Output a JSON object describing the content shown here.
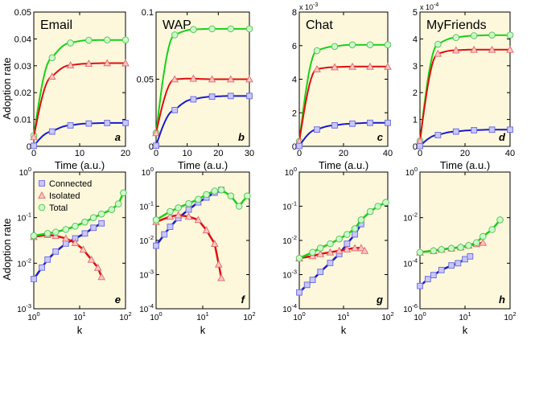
{
  "figure": {
    "row1_ylabel": "Adoption rate",
    "row2_ylabel": "Adoption rate",
    "row1_xlabel": "Time (a.u.)",
    "row2_xlabel": "k",
    "legend": [
      "Connected",
      "Isolated",
      "Total"
    ]
  },
  "colors": {
    "background": "#fdf8dc",
    "connected": "#1a1acc",
    "connected_marker_fill": "#c8c8ff",
    "connected_marker_edge": "#7070e0",
    "isolated": "#e01010",
    "isolated_marker_fill": "#ffc8c8",
    "isolated_marker_edge": "#e07070",
    "total": "#18d018",
    "total_marker_fill": "#c8ffc8",
    "total_marker_edge": "#60c060"
  },
  "chart_data": [
    {
      "panel": "a",
      "title": "Email",
      "type": "line",
      "x_range": [
        0,
        20
      ],
      "y_range": [
        0,
        0.05
      ],
      "xticks": [
        "0",
        "10",
        "20"
      ],
      "yticks": [
        "0",
        "0.01",
        "0.02",
        "0.03",
        "0.04",
        "0.05"
      ],
      "exponent": "",
      "series": [
        {
          "name": "Total",
          "x": [
            0,
            4,
            8,
            12,
            16,
            20
          ],
          "y": [
            0.004,
            0.033,
            0.0385,
            0.0395,
            0.0396,
            0.0396
          ]
        },
        {
          "name": "Isolated",
          "x": [
            0,
            4,
            8,
            12,
            16,
            20
          ],
          "y": [
            0.0035,
            0.026,
            0.0302,
            0.0308,
            0.031,
            0.031
          ]
        },
        {
          "name": "Connected",
          "x": [
            0,
            4,
            8,
            12,
            16,
            20
          ],
          "y": [
            0.0002,
            0.0055,
            0.0078,
            0.0085,
            0.0087,
            0.0087
          ]
        }
      ]
    },
    {
      "panel": "b",
      "title": "WAP",
      "type": "line",
      "x_range": [
        0,
        30
      ],
      "y_range": [
        0,
        0.1
      ],
      "xticks": [
        "0",
        "10",
        "20",
        "30"
      ],
      "yticks": [
        "0",
        "0.05",
        "0.1"
      ],
      "exponent": "",
      "series": [
        {
          "name": "Total",
          "x": [
            0,
            6,
            12,
            18,
            24,
            30
          ],
          "y": [
            0.01,
            0.083,
            0.087,
            0.0875,
            0.0875,
            0.0875
          ]
        },
        {
          "name": "Isolated",
          "x": [
            0,
            6,
            12,
            18,
            24,
            30
          ],
          "y": [
            0.01,
            0.05,
            0.0505,
            0.05,
            0.05,
            0.05
          ]
        },
        {
          "name": "Connected",
          "x": [
            0,
            6,
            12,
            18,
            24,
            30
          ],
          "y": [
            0.0005,
            0.027,
            0.035,
            0.037,
            0.0375,
            0.0375
          ]
        }
      ]
    },
    {
      "panel": "c",
      "title": "Chat",
      "type": "line",
      "x_range": [
        0,
        40
      ],
      "y_range": [
        0,
        8
      ],
      "xticks": [
        "0",
        "20",
        "40"
      ],
      "yticks": [
        "0",
        "2",
        "4",
        "6",
        "8"
      ],
      "exponent": "x 10^-3",
      "series": [
        {
          "name": "Total",
          "x": [
            0,
            8,
            16,
            24,
            32,
            40
          ],
          "y": [
            0.3,
            5.7,
            5.95,
            6.05,
            6.05,
            6.05
          ]
        },
        {
          "name": "Isolated",
          "x": [
            0,
            8,
            16,
            24,
            32,
            40
          ],
          "y": [
            0.3,
            4.6,
            4.72,
            4.75,
            4.75,
            4.75
          ]
        },
        {
          "name": "Connected",
          "x": [
            0,
            8,
            16,
            24,
            32,
            40
          ],
          "y": [
            0.02,
            1.0,
            1.25,
            1.35,
            1.4,
            1.4
          ]
        }
      ]
    },
    {
      "panel": "d",
      "title": "MyFriends",
      "type": "line",
      "x_range": [
        0,
        40
      ],
      "y_range": [
        0,
        5
      ],
      "xticks": [
        "0",
        "20",
        "40"
      ],
      "yticks": [
        "0",
        "1",
        "2",
        "3",
        "4",
        "5"
      ],
      "exponent": "x 10^-4",
      "series": [
        {
          "name": "Total",
          "x": [
            0,
            8,
            16,
            24,
            32,
            40
          ],
          "y": [
            0.2,
            3.8,
            4.05,
            4.12,
            4.14,
            4.14
          ]
        },
        {
          "name": "Isolated",
          "x": [
            0,
            8,
            16,
            24,
            32,
            40
          ],
          "y": [
            0.2,
            3.45,
            3.58,
            3.6,
            3.6,
            3.6
          ]
        },
        {
          "name": "Connected",
          "x": [
            0,
            8,
            16,
            24,
            32,
            40
          ],
          "y": [
            0.01,
            0.42,
            0.55,
            0.6,
            0.62,
            0.62
          ]
        }
      ]
    },
    {
      "panel": "e",
      "title": "",
      "type": "scatter",
      "log": true,
      "x_range": [
        1,
        100
      ],
      "y_range": [
        0.001,
        1
      ],
      "xticks": [
        "10^0",
        "10^1",
        "10^2"
      ],
      "yticks": [
        "10^-3",
        "10^-2",
        "10^-1",
        "10^0"
      ],
      "series": [
        {
          "name": "Connected",
          "x": [
            1,
            1.5,
            2,
            3,
            5,
            8,
            13,
            20,
            30
          ],
          "y": [
            0.0045,
            0.008,
            0.012,
            0.018,
            0.027,
            0.035,
            0.045,
            0.06,
            0.075
          ]
        },
        {
          "name": "Isolated",
          "x": [
            1,
            2,
            3,
            5,
            8,
            12,
            18,
            25,
            30
          ],
          "y": [
            0.038,
            0.042,
            0.04,
            0.035,
            0.028,
            0.02,
            0.012,
            0.008,
            0.005
          ]
        },
        {
          "name": "Total",
          "x": [
            1,
            2,
            3,
            5,
            8,
            13,
            20,
            30,
            50,
            70,
            90
          ],
          "y": [
            0.04,
            0.045,
            0.048,
            0.055,
            0.065,
            0.08,
            0.1,
            0.12,
            0.15,
            0.2,
            0.35
          ]
        }
      ]
    },
    {
      "panel": "f",
      "title": "",
      "type": "scatter",
      "log": true,
      "x_range": [
        1,
        100
      ],
      "y_range": [
        0.0001,
        1
      ],
      "xticks": [
        "10^0",
        "10^1",
        "10^2"
      ],
      "yticks": [
        "10^-4",
        "10^-3",
        "10^-2",
        "10^-1",
        "10^0"
      ],
      "series": [
        {
          "name": "Connected",
          "x": [
            1,
            1.5,
            2,
            3,
            5,
            8,
            12,
            18,
            25
          ],
          "y": [
            0.007,
            0.015,
            0.025,
            0.045,
            0.08,
            0.13,
            0.18,
            0.25,
            0.3
          ]
        },
        {
          "name": "Isolated",
          "x": [
            1,
            2,
            3,
            5,
            8,
            12,
            18,
            22,
            25
          ],
          "y": [
            0.035,
            0.05,
            0.055,
            0.05,
            0.04,
            0.02,
            0.008,
            0.002,
            0.0008
          ]
        },
        {
          "name": "Total",
          "x": [
            1,
            2,
            3,
            5,
            8,
            12,
            18,
            25,
            40,
            60,
            90
          ],
          "y": [
            0.04,
            0.07,
            0.09,
            0.12,
            0.16,
            0.22,
            0.28,
            0.3,
            0.2,
            0.1,
            0.2
          ]
        }
      ]
    },
    {
      "panel": "g",
      "title": "",
      "type": "scatter",
      "log": true,
      "x_range": [
        1,
        100
      ],
      "y_range": [
        0.0001,
        1
      ],
      "xticks": [
        "10^0",
        "10^1",
        "10^2"
      ],
      "yticks": [
        "10^-4",
        "10^-3",
        "10^-2",
        "10^-1",
        "10^0"
      ],
      "series": [
        {
          "name": "Connected",
          "x": [
            1,
            1.5,
            2,
            3,
            5,
            8,
            12,
            18,
            25
          ],
          "y": [
            0.0003,
            0.0005,
            0.0007,
            0.0012,
            0.0022,
            0.004,
            0.008,
            0.015,
            0.03
          ]
        },
        {
          "name": "Isolated",
          "x": [
            1,
            2,
            3,
            5,
            8,
            12,
            18,
            25,
            30
          ],
          "y": [
            0.003,
            0.0035,
            0.004,
            0.0045,
            0.005,
            0.0055,
            0.006,
            0.006,
            0.005
          ]
        },
        {
          "name": "Total",
          "x": [
            1,
            2,
            3,
            5,
            8,
            12,
            18,
            25,
            40,
            60,
            90
          ],
          "y": [
            0.003,
            0.0045,
            0.006,
            0.008,
            0.011,
            0.015,
            0.022,
            0.04,
            0.07,
            0.1,
            0.13
          ]
        }
      ]
    },
    {
      "panel": "h",
      "title": "",
      "type": "scatter",
      "log": true,
      "x_range": [
        1,
        100
      ],
      "y_range": [
        1e-06,
        1
      ],
      "xticks": [
        "10^0",
        "10^1",
        "10^2"
      ],
      "yticks": [
        "10^-6",
        "10^-4",
        "10^-2",
        "10^0"
      ],
      "series": [
        {
          "name": "Connected",
          "x": [
            1,
            1.5,
            2,
            3,
            5,
            7,
            10,
            13
          ],
          "y": [
            1e-05,
            2e-05,
            3e-05,
            5e-05,
            8e-05,
            0.0001,
            0.00015,
            0.0002
          ]
        },
        {
          "name": "Isolated",
          "x": [
            1,
            2,
            3,
            5,
            8,
            12,
            18,
            25
          ],
          "y": [
            0.0003,
            0.00035,
            0.0004,
            0.00045,
            0.0005,
            0.0006,
            0.0007,
            0.0008
          ]
        },
        {
          "name": "Total",
          "x": [
            1,
            2,
            3,
            5,
            8,
            12,
            18,
            25,
            40,
            60
          ],
          "y": [
            0.0003,
            0.00035,
            0.0004,
            0.00045,
            0.0005,
            0.0006,
            0.0008,
            0.0015,
            0.003,
            0.008
          ]
        }
      ]
    }
  ]
}
